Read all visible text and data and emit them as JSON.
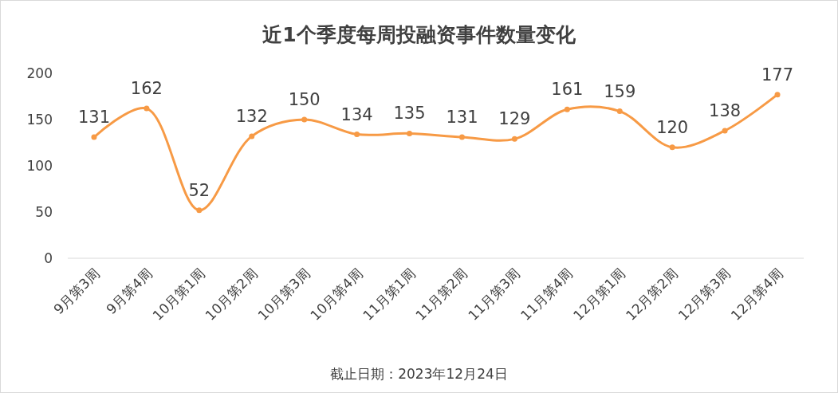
{
  "chart_data": {
    "type": "line",
    "title": "近1个季度每周投融资事件数量变化",
    "categories": [
      "9月第3周",
      "9月第4周",
      "10月第1周",
      "10月第2周",
      "10月第3周",
      "10月第4周",
      "11月第1周",
      "11月第2周",
      "11月第3周",
      "11月第4周",
      "12月第1周",
      "12月第2周",
      "12月第3周",
      "12月第4周"
    ],
    "series": [
      {
        "color": "#f79a45",
        "values": [
          131,
          162,
          52,
          132,
          150,
          134,
          135,
          131,
          129,
          161,
          159,
          120,
          138,
          177
        ]
      }
    ],
    "ylim": [
      0,
      200
    ],
    "yticks": [
      0,
      50,
      100,
      150,
      200
    ],
    "marker": "circle",
    "data_labels": true,
    "annotations": [
      "截止日期：2023年12月24日"
    ]
  }
}
